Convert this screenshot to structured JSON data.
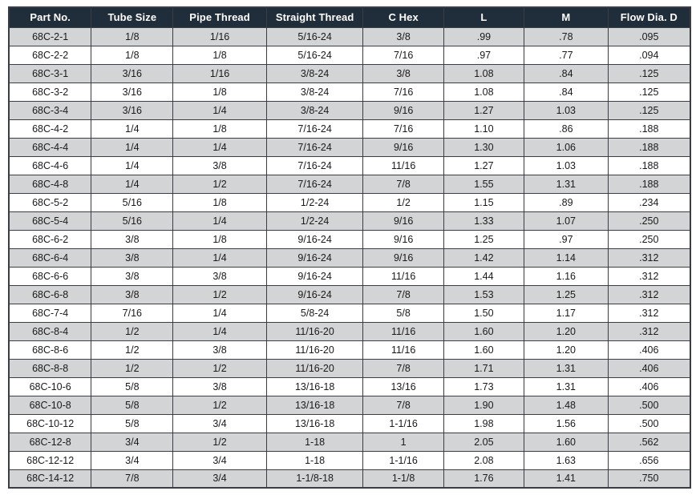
{
  "page": {
    "background": "#ffffff"
  },
  "table": {
    "headers": [
      "Part No.",
      "Tube Size",
      "Pipe Thread",
      "Straight Thread",
      "C Hex",
      "L",
      "M",
      "Flow Dia. D"
    ],
    "column_keys": [
      "part-no",
      "tube-size",
      "pipe-thread",
      "straight-thread",
      "c-hex",
      "l",
      "m",
      "flow-dia-d"
    ],
    "column_widths_pct": [
      12.1,
      12.0,
      13.7,
      14.2,
      11.8,
      11.8,
      12.3,
      12.1
    ],
    "rows": [
      [
        "68C-2-1",
        "1/8",
        "1/16",
        "5/16-24",
        "3/8",
        ".99",
        ".78",
        ".095"
      ],
      [
        "68C-2-2",
        "1/8",
        "1/8",
        "5/16-24",
        "7/16",
        ".97",
        ".77",
        ".094"
      ],
      [
        "68C-3-1",
        "3/16",
        "1/16",
        "3/8-24",
        "3/8",
        "1.08",
        ".84",
        ".125"
      ],
      [
        "68C-3-2",
        "3/16",
        "1/8",
        "3/8-24",
        "7/16",
        "1.08",
        ".84",
        ".125"
      ],
      [
        "68C-3-4",
        "3/16",
        "1/4",
        "3/8-24",
        "9/16",
        "1.27",
        "1.03",
        ".125"
      ],
      [
        "68C-4-2",
        "1/4",
        "1/8",
        "7/16-24",
        "7/16",
        "1.10",
        ".86",
        ".188"
      ],
      [
        "68C-4-4",
        "1/4",
        "1/4",
        "7/16-24",
        "9/16",
        "1.30",
        "1.06",
        ".188"
      ],
      [
        "68C-4-6",
        "1/4",
        "3/8",
        "7/16-24",
        "11/16",
        "1.27",
        "1.03",
        ".188"
      ],
      [
        "68C-4-8",
        "1/4",
        "1/2",
        "7/16-24",
        "7/8",
        "1.55",
        "1.31",
        ".188"
      ],
      [
        "68C-5-2",
        "5/16",
        "1/8",
        "1/2-24",
        "1/2",
        "1.15",
        ".89",
        ".234"
      ],
      [
        "68C-5-4",
        "5/16",
        "1/4",
        "1/2-24",
        "9/16",
        "1.33",
        "1.07",
        ".250"
      ],
      [
        "68C-6-2",
        "3/8",
        "1/8",
        "9/16-24",
        "9/16",
        "1.25",
        ".97",
        ".250"
      ],
      [
        "68C-6-4",
        "3/8",
        "1/4",
        "9/16-24",
        "9/16",
        "1.42",
        "1.14",
        ".312"
      ],
      [
        "68C-6-6",
        "3/8",
        "3/8",
        "9/16-24",
        "11/16",
        "1.44",
        "1.16",
        ".312"
      ],
      [
        "68C-6-8",
        "3/8",
        "1/2",
        "9/16-24",
        "7/8",
        "1.53",
        "1.25",
        ".312"
      ],
      [
        "68C-7-4",
        "7/16",
        "1/4",
        "5/8-24",
        "5/8",
        "1.50",
        "1.17",
        ".312"
      ],
      [
        "68C-8-4",
        "1/2",
        "1/4",
        "11/16-20",
        "11/16",
        "1.60",
        "1.20",
        ".312"
      ],
      [
        "68C-8-6",
        "1/2",
        "3/8",
        "11/16-20",
        "11/16",
        "1.60",
        "1.20",
        ".406"
      ],
      [
        "68C-8-8",
        "1/2",
        "1/2",
        "11/16-20",
        "7/8",
        "1.71",
        "1.31",
        ".406"
      ],
      [
        "68C-10-6",
        "5/8",
        "3/8",
        "13/16-18",
        "13/16",
        "1.73",
        "1.31",
        ".406"
      ],
      [
        "68C-10-8",
        "5/8",
        "1/2",
        "13/16-18",
        "7/8",
        "1.90",
        "1.48",
        ".500"
      ],
      [
        "68C-10-12",
        "5/8",
        "3/4",
        "13/16-18",
        "1-1/16",
        "1.98",
        "1.56",
        ".500"
      ],
      [
        "68C-12-8",
        "3/4",
        "1/2",
        "1-18",
        "1",
        "2.05",
        "1.60",
        ".562"
      ],
      [
        "68C-12-12",
        "3/4",
        "3/4",
        "1-18",
        "1-1/16",
        "2.08",
        "1.63",
        ".656"
      ],
      [
        "68C-14-12",
        "7/8",
        "3/4",
        "1-1/8-18",
        "1-1/8",
        "1.76",
        "1.41",
        ".750"
      ]
    ],
    "shading": {
      "first_row_shaded": true,
      "colors": {
        "header_bg": "#202d3a",
        "header_text": "#ffffff",
        "row_shaded": "#d3d4d6",
        "row_plain": "#ffffff",
        "border": "#3a3e44",
        "cell_text": "#1a1a1a"
      }
    }
  }
}
